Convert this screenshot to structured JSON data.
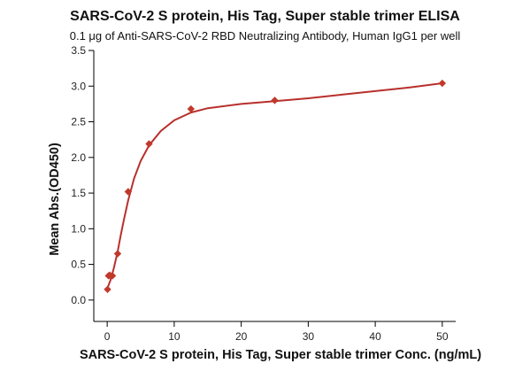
{
  "chart_data": {
    "type": "scatter",
    "title": "SARS-CoV-2 S protein, His Tag, Super stable trimer ELISA",
    "subtitle": "0.1 μg of Anti-SARS-CoV-2 RBD Neutralizing Antibody, Human IgG1 per well",
    "xlabel": "SARS-CoV-2 S protein, His Tag, Super stable trimer Conc. (ng/mL)",
    "ylabel": "Mean Abs.(OD450)",
    "xlim": [
      -2,
      52
    ],
    "ylim": [
      -0.3,
      3.5
    ],
    "xticks": [
      0,
      10,
      20,
      30,
      40,
      50
    ],
    "yticks": [
      0.0,
      0.5,
      1.0,
      1.5,
      2.0,
      2.5,
      3.0,
      3.5
    ],
    "grid": false,
    "marker_color": "#c0392b",
    "curve_color": "#b8302c",
    "series": [
      {
        "points": [
          {
            "x": 0.05,
            "y": 0.15
          },
          {
            "x": 0.2,
            "y": 0.34
          },
          {
            "x": 0.39,
            "y": 0.35
          },
          {
            "x": 0.78,
            "y": 0.34
          },
          {
            "x": 1.56,
            "y": 0.65
          },
          {
            "x": 3.13,
            "y": 1.52
          },
          {
            "x": 6.25,
            "y": 2.19
          },
          {
            "x": 12.5,
            "y": 2.68
          },
          {
            "x": 25,
            "y": 2.8
          },
          {
            "x": 50,
            "y": 3.04
          }
        ],
        "fit_curve": [
          {
            "x": 0.05,
            "y": 0.17
          },
          {
            "x": 0.5,
            "y": 0.28
          },
          {
            "x": 1,
            "y": 0.45
          },
          {
            "x": 1.56,
            "y": 0.68
          },
          {
            "x": 2,
            "y": 0.9
          },
          {
            "x": 2.5,
            "y": 1.13
          },
          {
            "x": 3.13,
            "y": 1.4
          },
          {
            "x": 4,
            "y": 1.7
          },
          {
            "x": 5,
            "y": 1.95
          },
          {
            "x": 6.25,
            "y": 2.17
          },
          {
            "x": 8,
            "y": 2.37
          },
          {
            "x": 10,
            "y": 2.52
          },
          {
            "x": 12.5,
            "y": 2.63
          },
          {
            "x": 15,
            "y": 2.69
          },
          {
            "x": 20,
            "y": 2.75
          },
          {
            "x": 25,
            "y": 2.79
          },
          {
            "x": 30,
            "y": 2.83
          },
          {
            "x": 35,
            "y": 2.88
          },
          {
            "x": 40,
            "y": 2.93
          },
          {
            "x": 45,
            "y": 2.98
          },
          {
            "x": 50,
            "y": 3.04
          }
        ]
      }
    ]
  }
}
